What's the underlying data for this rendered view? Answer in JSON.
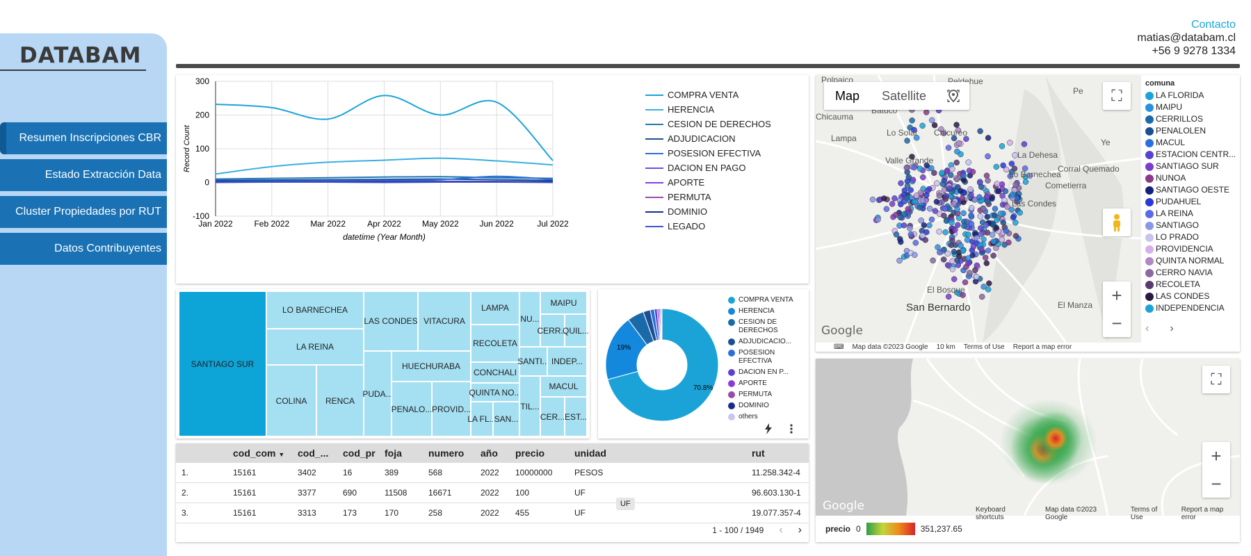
{
  "brand": "DATABAM",
  "nav": [
    {
      "label": "Resumen Inscripciones CBR"
    },
    {
      "label": "Estado Extracción Data"
    },
    {
      "label": "Cluster Propiedades por RUT"
    },
    {
      "label": "Datos Contribuyentes"
    }
  ],
  "contact": {
    "title": "Contacto",
    "email": "matias@databam.cl",
    "phone": "+56 9 9278 1334"
  },
  "chart_data": [
    {
      "type": "line",
      "xlabel": "datetime (Year Month)",
      "ylabel": "Record Count",
      "ylim": [
        -100,
        300
      ],
      "yticks": [
        "300",
        "200",
        "100",
        "0",
        "-100"
      ],
      "categories": [
        "Jan 2022",
        "Feb 2022",
        "Mar 2022",
        "Apr 2022",
        "May 2022",
        "Jun 2022",
        "Jul 2022"
      ],
      "legend": "right",
      "grid": true,
      "series": [
        {
          "name": "COMPRA VENTA",
          "color": "#1ba3d8",
          "values": [
            232,
            222,
            188,
            258,
            200,
            238,
            65
          ]
        },
        {
          "name": "HERENCIA",
          "color": "#3aaee0",
          "values": [
            25,
            47,
            60,
            66,
            72,
            64,
            52
          ]
        },
        {
          "name": "CESION DE DERECHOS",
          "color": "#1f77b4",
          "values": [
            10,
            12,
            14,
            16,
            17,
            14,
            12
          ]
        },
        {
          "name": "ADJUDICACION",
          "color": "#1b4f93",
          "values": [
            6,
            7,
            8,
            9,
            10,
            8,
            6
          ]
        },
        {
          "name": "POSESION EFECTIVA",
          "color": "#2a6fdc",
          "values": [
            3,
            4,
            5,
            6,
            8,
            18,
            9
          ]
        },
        {
          "name": "DACION EN PAGO",
          "color": "#6a4fe0",
          "values": [
            2,
            2,
            3,
            3,
            3,
            3,
            2
          ]
        },
        {
          "name": "APORTE",
          "color": "#8a3bd6",
          "values": [
            1,
            2,
            2,
            2,
            2,
            2,
            1
          ]
        },
        {
          "name": "PERMUTA",
          "color": "#9a4aa8",
          "values": [
            1,
            1,
            1,
            1,
            2,
            1,
            1
          ]
        },
        {
          "name": "DOMINIO",
          "color": "#1a2a8c",
          "values": [
            2,
            2,
            2,
            2,
            2,
            2,
            2
          ]
        },
        {
          "name": "LEGADO",
          "color": "#3d55c8",
          "values": [
            0,
            1,
            1,
            0,
            1,
            1,
            0
          ]
        }
      ]
    },
    {
      "type": "pie",
      "donut": true,
      "data_labels": [
        "70.8%",
        "19%"
      ],
      "slices": [
        {
          "name": "COMPRA VENTA",
          "value": 70.8,
          "color": "#1ba3d8"
        },
        {
          "name": "HERENCIA",
          "value": 19.0,
          "color": "#1488dc"
        },
        {
          "name": "CESION DE DERECHOS",
          "value": 4.8,
          "color": "#1a6aa8"
        },
        {
          "name": "ADJUDICACIO...",
          "value": 2.0,
          "color": "#1b4f93"
        },
        {
          "name": "POSESION EFECTIVA",
          "value": 1.2,
          "color": "#2a6fdc"
        },
        {
          "name": "DACION EN P...",
          "value": 0.8,
          "color": "#5a42d0"
        },
        {
          "name": "APORTE",
          "value": 0.5,
          "color": "#8a3bd6"
        },
        {
          "name": "PERMUTA",
          "value": 0.4,
          "color": "#9a4aa8"
        },
        {
          "name": "DOMINIO",
          "value": 0.3,
          "color": "#1a2a8c"
        },
        {
          "name": "others",
          "value": 0.2,
          "color": "#c9c4f0"
        }
      ]
    }
  ],
  "pie_legend": [
    "COMPRA VENTA",
    "HERENCIA",
    "CESION DE DERECHOS",
    "ADJUDICACIO...",
    "POSESION EFECTIVA",
    "DACION EN P...",
    "APORTE",
    "PERMUTA",
    "DOMINIO",
    "others"
  ],
  "treemap": [
    "SANTIAGO SUR",
    "LO BARNECHEA",
    "LA REINA",
    "COLINA",
    "RENCA",
    "LAS CONDES",
    "PUDA...",
    "VITACURA",
    "HUECHURABA",
    "PENALO...",
    "PROVID...",
    "LAMPA",
    "RECOLETA",
    "CONCHALI",
    "QUINTA NO...",
    "LA FL...",
    "SAN...",
    "NU...",
    "MAIPU",
    "CERR...",
    "QUIL...",
    "SANTI...",
    "INDEP...",
    "MACUL",
    "TIL...",
    "CER...",
    "EST..."
  ],
  "table": {
    "headers": [
      "cod_com",
      "cod_...",
      "cod_pr",
      "foja",
      "numero",
      "año",
      "precio",
      "unidad",
      "rut"
    ],
    "rows": [
      {
        "idx": "1.",
        "cells": [
          "15161",
          "3402",
          "16",
          "389",
          "568",
          "2022",
          "10000000",
          "PESOS",
          "11.258.342-4"
        ]
      },
      {
        "idx": "2.",
        "cells": [
          "15161",
          "3377",
          "690",
          "11508",
          "16671",
          "2022",
          "100",
          "UF",
          "96.603.130-1"
        ]
      },
      {
        "idx": "3.",
        "cells": [
          "15161",
          "3313",
          "173",
          "170",
          "258",
          "2022",
          "455",
          "UF",
          "19.077.357-4"
        ]
      }
    ],
    "pagination": "1 - 100 / 1949",
    "tooltip": "UF"
  },
  "map1": {
    "buttons": [
      "Map",
      "Satellite"
    ],
    "places": [
      "Polpaico",
      "Peldehue",
      "Chicauma",
      "Batuco",
      "Lampa",
      "Lo Solar",
      "Chicureo",
      "Valle Grande",
      "La Dehesa",
      "Lo Barnechea",
      "Corral Quemado",
      "Cometierra",
      "Las Condes",
      "El Bosque",
      "San Bernardo",
      "El Manza",
      "Pe",
      "Ye"
    ],
    "footer": [
      "Map data ©2023 Google",
      "10 km",
      "Terms of Use",
      "Report a map error"
    ],
    "legend_title": "comuna",
    "legend": [
      {
        "name": "LA FLORIDA",
        "color": "#1ba3d8"
      },
      {
        "name": "MAIPU",
        "color": "#2a8fe0"
      },
      {
        "name": "CERRILLOS",
        "color": "#1a6aa8"
      },
      {
        "name": "PENALOLEN",
        "color": "#1b4f93"
      },
      {
        "name": "MACUL",
        "color": "#2a6fdc"
      },
      {
        "name": "ESTACION CENTR...",
        "color": "#5a42d0"
      },
      {
        "name": "SANTIAGO SUR",
        "color": "#7a3bd0"
      },
      {
        "name": "NUNOA",
        "color": "#8a3a8c"
      },
      {
        "name": "SANTIAGO OESTE",
        "color": "#14207a"
      },
      {
        "name": "PUDAHUEL",
        "color": "#2a3ad8"
      },
      {
        "name": "LA REINA",
        "color": "#5a6ae8"
      },
      {
        "name": "SANTIAGO",
        "color": "#8a96e8"
      },
      {
        "name": "LO PRADO",
        "color": "#c7c4f0"
      },
      {
        "name": "PROVIDENCIA",
        "color": "#d6b0e8"
      },
      {
        "name": "QUINTA NORMAL",
        "color": "#b088c8"
      },
      {
        "name": "CERRO NAVIA",
        "color": "#8a6aa0"
      },
      {
        "name": "RECOLETA",
        "color": "#5a3a6e"
      },
      {
        "name": "LAS CONDES",
        "color": "#2a1a40"
      },
      {
        "name": "INDEPENDENCIA",
        "color": "#1ba3d8"
      }
    ]
  },
  "map2": {
    "footer": [
      "Keyboard shortcuts",
      "Map data ©2023 Google",
      "Terms of Use",
      "Report a map error"
    ],
    "legend_label": "precio",
    "legend_min": "0",
    "legend_max": "351,237.65",
    "google": "Google"
  }
}
